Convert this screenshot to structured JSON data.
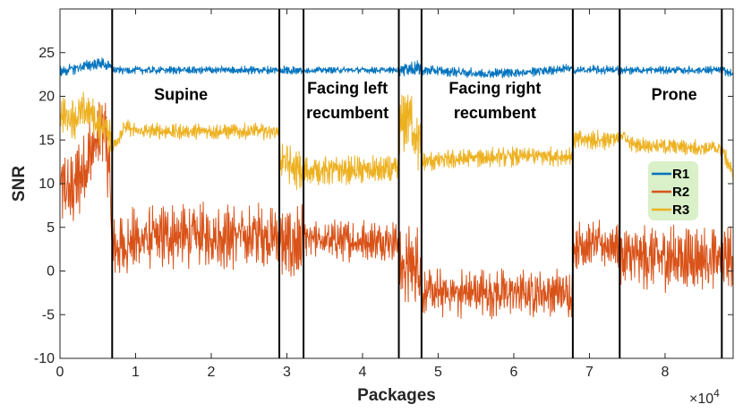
{
  "chart_data": {
    "type": "line",
    "title": "",
    "xlabel": "Packages",
    "ylabel": "SNR",
    "x_exponent_label": "×10",
    "x_exponent_power": "4",
    "xlim": [
      0,
      89000
    ],
    "ylim": [
      -10,
      30
    ],
    "xticks": [
      0,
      10000,
      20000,
      30000,
      40000,
      50000,
      60000,
      70000,
      80000
    ],
    "xtick_labels": [
      "0",
      "1",
      "2",
      "3",
      "4",
      "5",
      "6",
      "7",
      "8"
    ],
    "yticks": [
      -10,
      -5,
      0,
      5,
      10,
      15,
      20,
      25
    ],
    "ytick_labels": [
      "-10",
      "-5",
      "0",
      "5",
      "10",
      "15",
      "20",
      "25"
    ],
    "grid": false,
    "legend_position": "right",
    "segment_boundaries": [
      6900,
      29000,
      32200,
      44800,
      47800,
      67800,
      74000,
      87500
    ],
    "annotations": [
      {
        "text": "Supine",
        "x": 16000,
        "y": 19.6
      },
      {
        "text": "Facing left",
        "x": 38000,
        "y": 20.3
      },
      {
        "text": "recumbent",
        "x": 38000,
        "y": 17.5
      },
      {
        "text": "Facing right",
        "x": 57500,
        "y": 20.3
      },
      {
        "text": "recumbent",
        "x": 57500,
        "y": 17.5
      },
      {
        "text": "Prone",
        "x": 81200,
        "y": 19.6
      }
    ],
    "series": [
      {
        "name": "R1",
        "color": "#0072BD",
        "segments": [
          {
            "x": [
              0,
              2000,
              4000,
              5500,
              6900
            ],
            "y": [
              22.8,
              23.2,
              23.6,
              23.8,
              23.2
            ],
            "amp": 0.7
          },
          {
            "x": [
              6900,
              29000
            ],
            "y": [
              23.0,
              23.0
            ],
            "amp": 0.5
          },
          {
            "x": [
              29000,
              32200
            ],
            "y": [
              23.0,
              23.0
            ],
            "amp": 0.6
          },
          {
            "x": [
              32200,
              44800
            ],
            "y": [
              23.0,
              23.0
            ],
            "amp": 0.4
          },
          {
            "x": [
              44800,
              47800
            ],
            "y": [
              23.2,
              23.2
            ],
            "amp": 0.9
          },
          {
            "x": [
              47800,
              56000,
              62000,
              67800
            ],
            "y": [
              23.0,
              22.6,
              22.8,
              23.2
            ],
            "amp": 0.6
          },
          {
            "x": [
              67800,
              74000
            ],
            "y": [
              23.0,
              23.0
            ],
            "amp": 0.6
          },
          {
            "x": [
              74000,
              87500,
              89000
            ],
            "y": [
              23.0,
              23.0,
              22.5
            ],
            "amp": 0.5
          }
        ]
      },
      {
        "name": "R2",
        "color": "#D95319",
        "segments": [
          {
            "x": [
              0,
              1500,
              3000,
              4500,
              6000,
              6900
            ],
            "y": [
              9.5,
              9.0,
              11.5,
              14.0,
              17.0,
              5.0
            ],
            "amp": 5.0
          },
          {
            "x": [
              6900,
              10000,
              15000,
              20000,
              25000,
              29000
            ],
            "y": [
              2.5,
              3.5,
              4.0,
              4.0,
              4.0,
              4.0
            ],
            "amp": 4.0
          },
          {
            "x": [
              29000,
              32200
            ],
            "y": [
              3.0,
              3.0
            ],
            "amp": 5.0
          },
          {
            "x": [
              32200,
              44800
            ],
            "y": [
              3.5,
              3.5
            ],
            "amp": 2.5
          },
          {
            "x": [
              44800,
              47800
            ],
            "y": [
              0.5,
              0.5
            ],
            "amp": 5.0
          },
          {
            "x": [
              47800,
              54000,
              67800
            ],
            "y": [
              -2.5,
              -2.5,
              -2.5
            ],
            "amp": 3.0
          },
          {
            "x": [
              67800,
              74000
            ],
            "y": [
              3.0,
              3.0
            ],
            "amp": 3.0
          },
          {
            "x": [
              74000,
              87500,
              89000
            ],
            "y": [
              1.5,
              1.5,
              1.5
            ],
            "amp": 4.0
          }
        ]
      },
      {
        "name": "R3",
        "color": "#EDB120",
        "segments": [
          {
            "x": [
              0,
              2000,
              3500,
              5000,
              6900
            ],
            "y": [
              18.0,
              17.5,
              18.5,
              17.0,
              15.5
            ],
            "amp": 2.5
          },
          {
            "x": [
              6900,
              8500,
              10000,
              29000
            ],
            "y": [
              14.0,
              16.5,
              16.0,
              16.0
            ],
            "amp": 1.0
          },
          {
            "x": [
              29000,
              30500,
              32200
            ],
            "y": [
              13.0,
              12.0,
              11.0
            ],
            "amp": 2.5
          },
          {
            "x": [
              32200,
              44800
            ],
            "y": [
              11.5,
              11.5
            ],
            "amp": 1.8
          },
          {
            "x": [
              44800,
              46000,
              47800
            ],
            "y": [
              16.0,
              18.0,
              14.0
            ],
            "amp": 4.0
          },
          {
            "x": [
              47800,
              56000,
              67800
            ],
            "y": [
              12.5,
              13.0,
              13.2
            ],
            "amp": 1.2
          },
          {
            "x": [
              67800,
              74000
            ],
            "y": [
              15.0,
              15.0
            ],
            "amp": 1.2
          },
          {
            "x": [
              74000,
              75500,
              87500,
              89000
            ],
            "y": [
              16.0,
              14.5,
              14.0,
              11.0
            ],
            "amp": 1.0
          }
        ]
      }
    ]
  }
}
